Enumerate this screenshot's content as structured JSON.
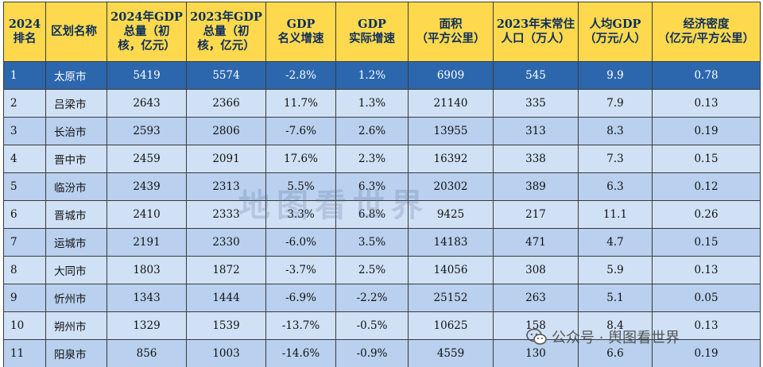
{
  "table": {
    "headers": [
      [
        "2024",
        "排名"
      ],
      [
        "区划名称"
      ],
      [
        "2024年GDP",
        "总量（初",
        "核，亿元）"
      ],
      [
        "2023年GDP",
        "总量（初",
        "核，亿元）"
      ],
      [
        "GDP",
        "名义增速"
      ],
      [
        "GDP",
        "实际增速"
      ],
      [
        "面积",
        "（平方公里）"
      ],
      [
        "2023年末常住",
        "人口（万人）"
      ],
      [
        "人均GDP",
        "（万元/人）"
      ],
      [
        "经济密度",
        "（亿元/平方公里）"
      ]
    ],
    "rows": [
      [
        "1",
        "太原市",
        "5419",
        "5574",
        "-2.8%",
        "1.2%",
        "6909",
        "545",
        "9.9",
        "0.78"
      ],
      [
        "2",
        "吕梁市",
        "2643",
        "2366",
        "11.7%",
        "1.3%",
        "21140",
        "335",
        "7.9",
        "0.13"
      ],
      [
        "3",
        "长治市",
        "2593",
        "2806",
        "-7.6%",
        "2.6%",
        "13955",
        "313",
        "8.3",
        "0.19"
      ],
      [
        "4",
        "晋中市",
        "2459",
        "2091",
        "17.6%",
        "2.3%",
        "16392",
        "338",
        "7.3",
        "0.15"
      ],
      [
        "5",
        "临汾市",
        "2439",
        "2313",
        "5.5%",
        "6.3%",
        "20302",
        "389",
        "6.3",
        "0.12"
      ],
      [
        "6",
        "晋城市",
        "2410",
        "2333",
        "3.3%",
        "6.8%",
        "9425",
        "217",
        "11.1",
        "0.26"
      ],
      [
        "7",
        "运城市",
        "2191",
        "2330",
        "-6.0%",
        "3.5%",
        "14183",
        "471",
        "4.7",
        "0.15"
      ],
      [
        "8",
        "大同市",
        "1803",
        "1872",
        "-3.7%",
        "2.5%",
        "14056",
        "308",
        "5.9",
        "0.13"
      ],
      [
        "9",
        "忻州市",
        "1343",
        "1444",
        "-6.9%",
        "-2.2%",
        "25152",
        "263",
        "5.1",
        "0.05"
      ],
      [
        "10",
        "朔州市",
        "1329",
        "1539",
        "-13.7%",
        "-0.5%",
        "10625",
        "158",
        "8.4",
        "0.13"
      ],
      [
        "11",
        "阳泉市",
        "856",
        "1003",
        "-14.6%",
        "-0.9%",
        "4559",
        "130",
        "6.6",
        "0.19"
      ]
    ]
  },
  "watermark": "地图看世界",
  "source": "公众号 · 舆图看世界",
  "colors": {
    "header_bg": "#ffd94d",
    "header_text": "#0c2e5c",
    "top_row_bg": "#2c67ad",
    "row_bg_light": "#d0e1f6",
    "row_bg_mid": "#b9d0ee",
    "border": "#3a3a3a"
  },
  "icons": {
    "source_logo": "wechat-icon"
  }
}
